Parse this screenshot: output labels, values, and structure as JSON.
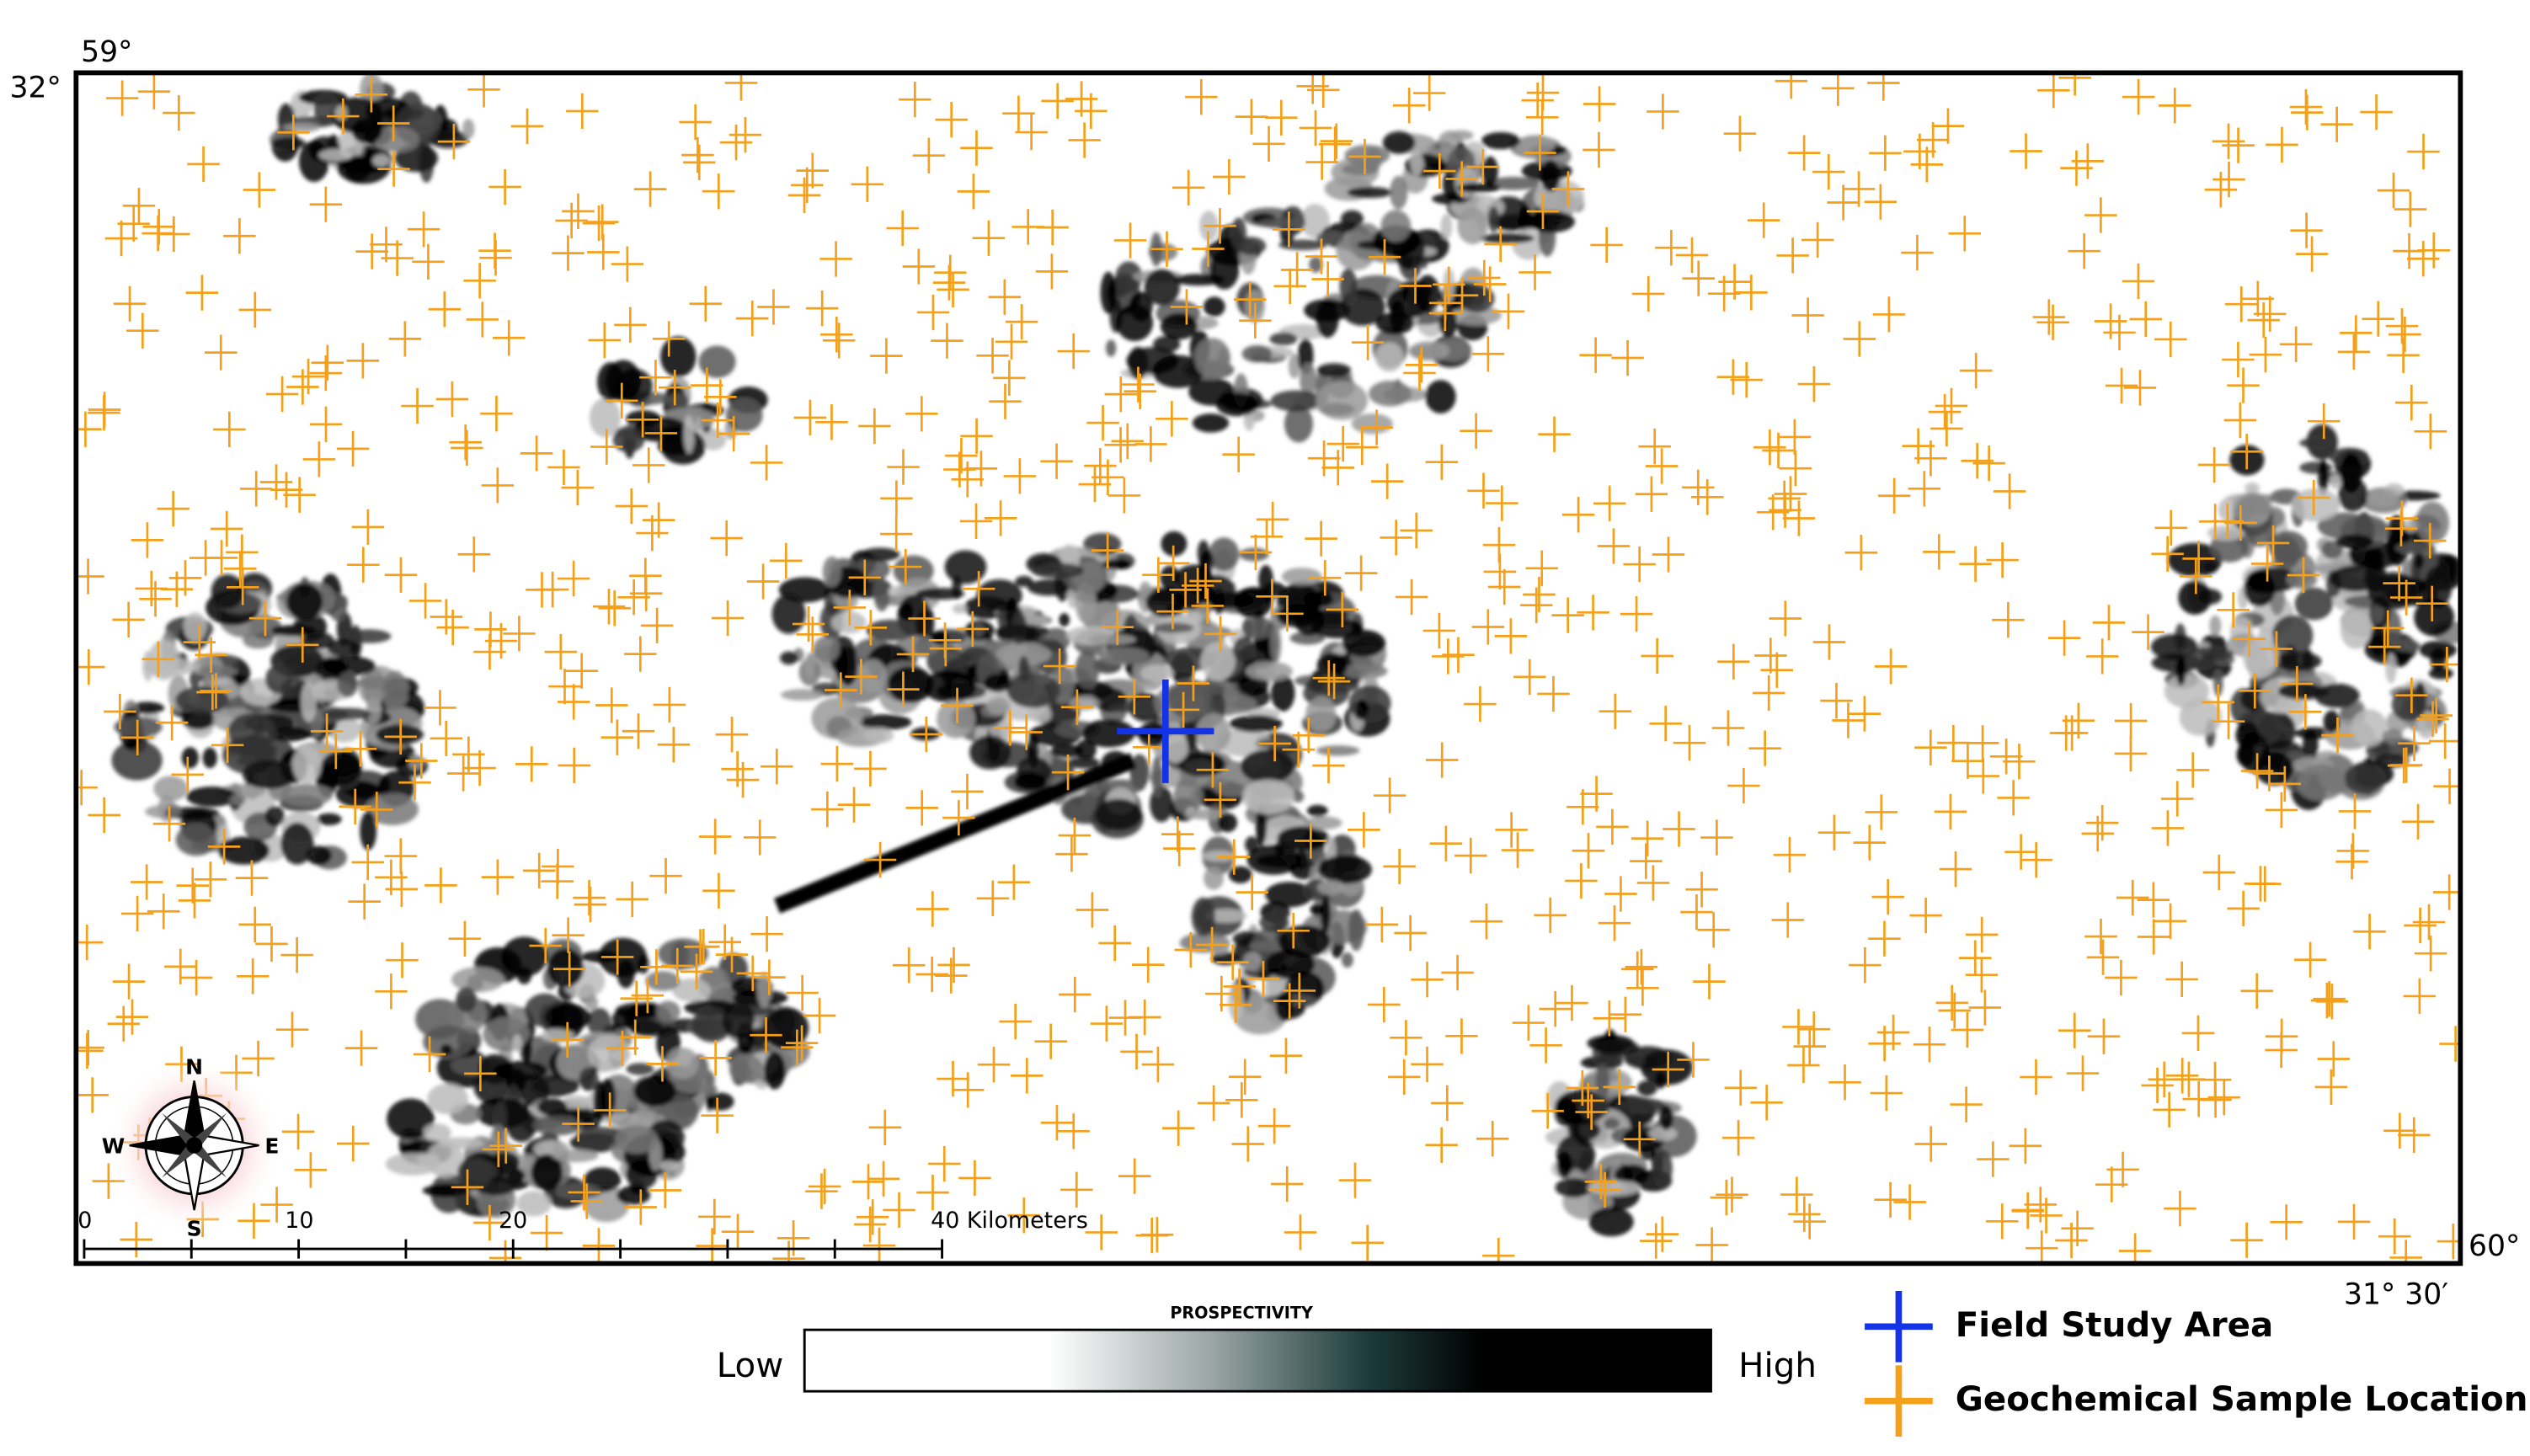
{
  "map": {
    "corner_labels": {
      "top_left_lon": "59°",
      "top_left_lat": "32°",
      "bottom_right_lon": "60°",
      "bottom_right_lat": "31° 30′"
    },
    "scale_bar": {
      "labels": [
        "0",
        "10",
        "20",
        "40 Kilometers"
      ]
    },
    "compass": {
      "north": "N",
      "south": "S",
      "east": "E",
      "west": "W"
    }
  },
  "legend": {
    "title": "PROSPECTIVITY",
    "low": "Low",
    "high": "High",
    "items": [
      "Field Study Area",
      "Geochemical Sample Location"
    ]
  }
}
